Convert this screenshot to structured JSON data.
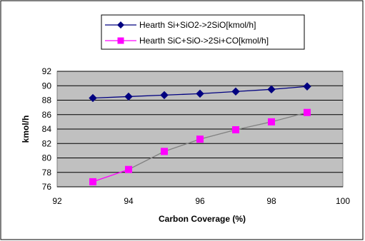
{
  "chart_data": {
    "type": "line",
    "title": "",
    "xlabel": "Carbon Coverage (%)",
    "ylabel": "kmol/h",
    "xlim": [
      92,
      100
    ],
    "ylim": [
      76,
      92
    ],
    "x_ticks": [
      "92",
      "94",
      "96",
      "98",
      "100"
    ],
    "y_ticks": [
      "76",
      "78",
      "80",
      "82",
      "84",
      "86",
      "88",
      "90",
      "92"
    ],
    "grid": true,
    "legend_position": "top",
    "plot_background": "#c0c0c0",
    "series": [
      {
        "name": "Hearth Si+SiO2->2SiO[kmol/h]",
        "marker": "diamond",
        "color": "#000080",
        "x": [
          93,
          94,
          95,
          96,
          97,
          98,
          99
        ],
        "y": [
          88.3,
          88.5,
          88.7,
          88.9,
          89.2,
          89.5,
          89.9
        ]
      },
      {
        "name": "Hearth SiC+SiO->2Si+CO[kmol/h]",
        "marker": "square",
        "color": "#ff00ff",
        "line_colors": [
          "#ff00ff",
          "#808080"
        ],
        "x": [
          93,
          94,
          95,
          96,
          97,
          98,
          99
        ],
        "y": [
          76.7,
          78.4,
          80.9,
          82.6,
          83.9,
          85.0,
          86.3
        ]
      }
    ]
  }
}
